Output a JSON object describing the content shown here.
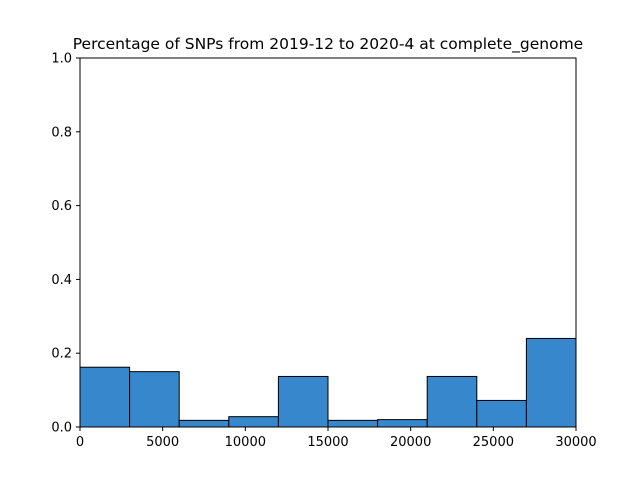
{
  "chart_data": {
    "type": "bar",
    "title": "Percentage of SNPs from 2019-12 to 2020-4 at complete_genome",
    "xlabel": "",
    "ylabel": "",
    "xlim": [
      0,
      30000
    ],
    "ylim": [
      0,
      1.0
    ],
    "bin_edges": [
      0,
      3000,
      6000,
      9000,
      12000,
      15000,
      18000,
      21000,
      24000,
      27000,
      30000
    ],
    "values": [
      0.162,
      0.15,
      0.018,
      0.028,
      0.137,
      0.018,
      0.02,
      0.137,
      0.072,
      0.24
    ],
    "bar_color": "#3787cd",
    "edge_color": "#000000",
    "grid": false,
    "x_ticks": [
      {
        "value": 0,
        "label": "0"
      },
      {
        "value": 5000,
        "label": "5000"
      },
      {
        "value": 10000,
        "label": "10000"
      },
      {
        "value": 15000,
        "label": "15000"
      },
      {
        "value": 20000,
        "label": "20000"
      },
      {
        "value": 25000,
        "label": "25000"
      },
      {
        "value": 30000,
        "label": "30000"
      }
    ],
    "y_ticks": [
      {
        "value": 0.0,
        "label": "0.0"
      },
      {
        "value": 0.2,
        "label": "0.2"
      },
      {
        "value": 0.4,
        "label": "0.4"
      },
      {
        "value": 0.6,
        "label": "0.6"
      },
      {
        "value": 0.8,
        "label": "0.8"
      },
      {
        "value": 1.0,
        "label": "1.0"
      }
    ]
  }
}
